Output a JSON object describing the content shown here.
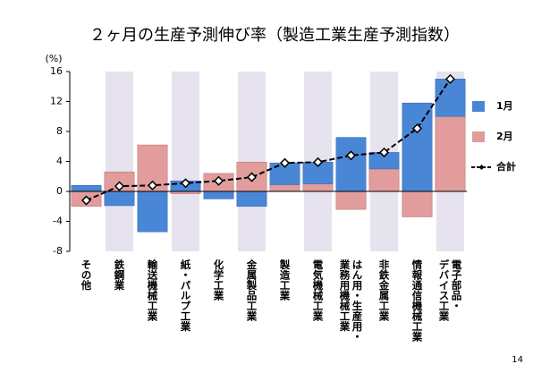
{
  "chart_data": {
    "type": "bar",
    "title": "２ヶ月の生産予測伸び率（製造工業生産予測指数）",
    "y_unit": "(%)",
    "page_number": "14",
    "categories": [
      "その他",
      "鉄鋼業",
      "輸送機械工業",
      "紙・パルプ工業",
      "化学工業",
      "金属製品工業",
      "製造工業",
      "電気機械工業",
      [
        "はん用・生産用・",
        "業務用機械工業"
      ],
      "非鉄金属工業",
      "情報通信機械工業",
      [
        "電子部品・",
        "デバイス工業"
      ]
    ],
    "series": [
      {
        "name": "1月",
        "color": "#4a86d6",
        "values": [
          0.8,
          -1.9,
          -5.4,
          1.4,
          -1.0,
          -2.0,
          2.9,
          2.9,
          7.2,
          2.2,
          11.8,
          5.0
        ]
      },
      {
        "name": "2月",
        "color": "#e29c9c",
        "values": [
          -2.0,
          2.6,
          6.2,
          -0.3,
          2.4,
          3.9,
          0.9,
          1.0,
          -2.4,
          3.0,
          -3.4,
          10.0
        ]
      },
      {
        "name": "合計",
        "color": "#000000",
        "type": "line",
        "values": [
          -1.2,
          0.7,
          0.8,
          1.1,
          1.4,
          1.9,
          3.8,
          3.9,
          4.8,
          5.2,
          8.4,
          15.0
        ]
      }
    ],
    "ylim": [
      -8,
      16
    ],
    "yticks": [
      -8,
      -4,
      0,
      4,
      8,
      12,
      16
    ]
  }
}
